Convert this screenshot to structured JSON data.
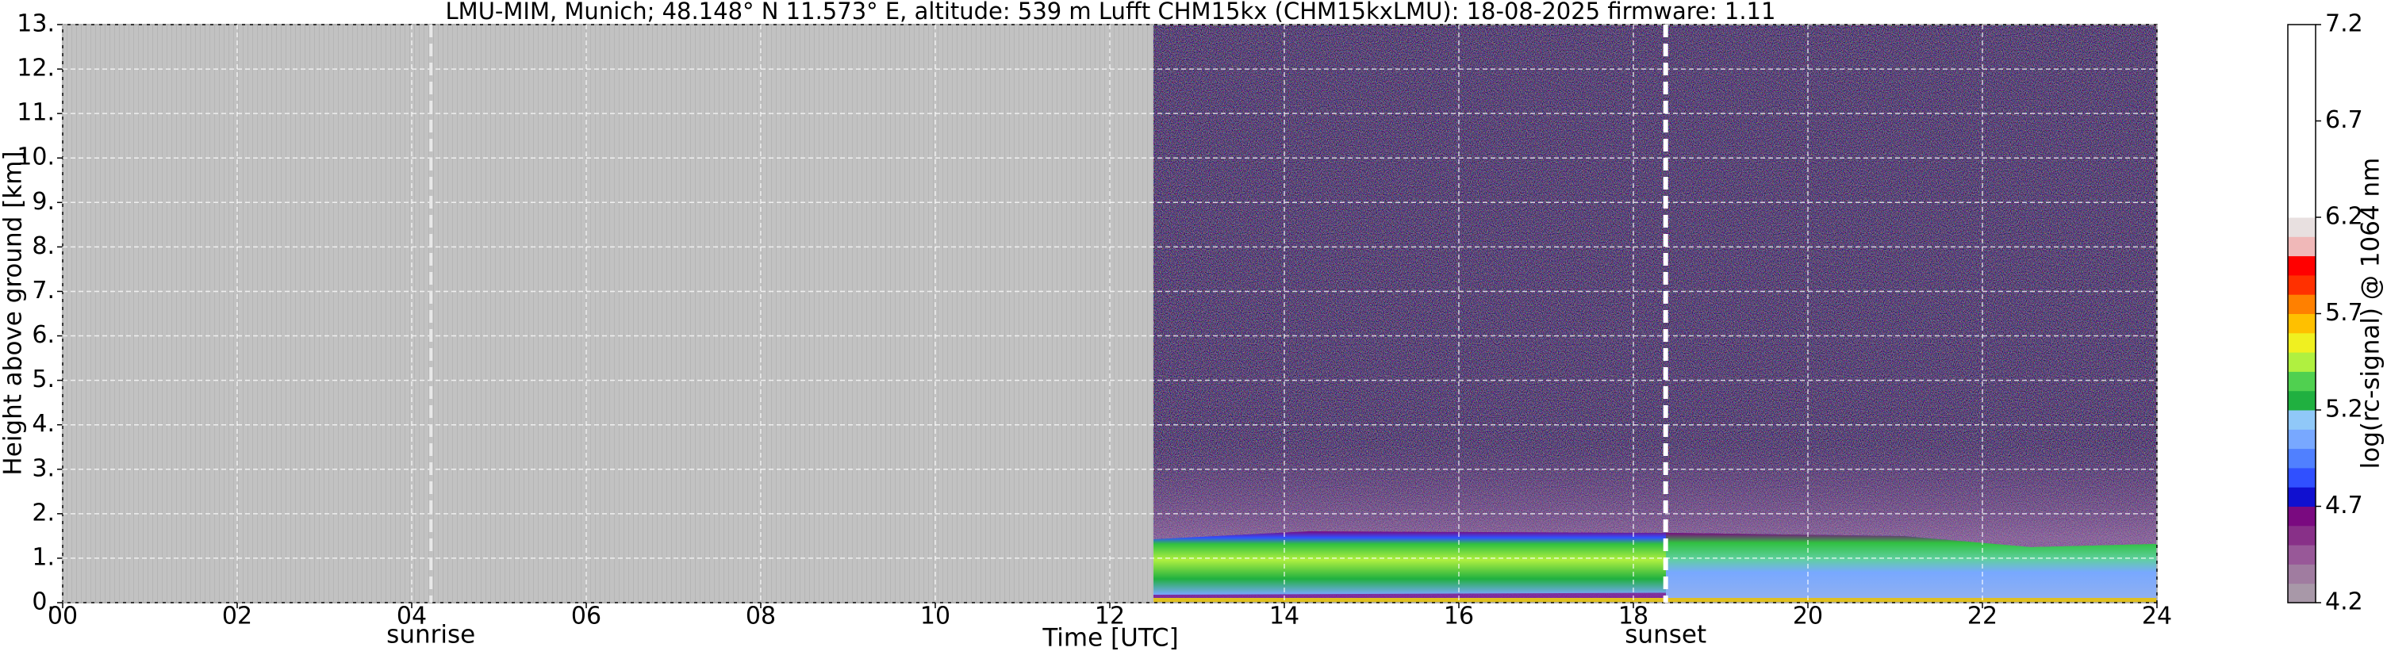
{
  "chart_data": {
    "type": "heatmap",
    "title": "LMU-MIM, Munich; 48.148° N 11.573° E, altitude: 539 m    Lufft CHM15kx (CHM15kxLMU): 18-08-2025    firmware: 1.11",
    "xlabel": "Time [UTC]",
    "ylabel": "Height above ground [km]",
    "xlim": [
      0,
      24
    ],
    "xticks": [
      {
        "value": 0,
        "label": "00"
      },
      {
        "value": 2,
        "label": "02"
      },
      {
        "value": 4,
        "label": "04"
      },
      {
        "value": 6,
        "label": "06"
      },
      {
        "value": 8,
        "label": "08"
      },
      10,
      12,
      14,
      16,
      18,
      20,
      22,
      24
    ],
    "ylim": [
      0,
      13
    ],
    "yticks": [
      {
        "value": 0,
        "label": "0."
      },
      {
        "value": 1,
        "label": "1."
      },
      {
        "value": 2,
        "label": "2."
      },
      {
        "value": 3,
        "label": "3."
      },
      {
        "value": 4,
        "label": "4."
      },
      {
        "value": 5,
        "label": "5."
      },
      {
        "value": 6,
        "label": "6."
      },
      {
        "value": 7,
        "label": "7."
      },
      {
        "value": 8,
        "label": "8."
      },
      {
        "value": 9,
        "label": "9."
      },
      {
        "value": 10,
        "label": "10."
      },
      {
        "value": 11,
        "label": "11."
      },
      {
        "value": 12,
        "label": "12."
      },
      {
        "value": 13,
        "label": "13."
      }
    ],
    "grid": true,
    "annotations": [
      {
        "text": "sunrise",
        "x": 4.22
      },
      {
        "text": "sunset",
        "x": 18.37
      }
    ],
    "colorbar": {
      "label": "log(rc-signal) @ 1064 nm",
      "lim": [
        4.2,
        7.2
      ],
      "ticks": [
        4.2,
        4.7,
        5.2,
        5.7,
        6.2,
        6.7,
        7.2
      ],
      "colors": [
        "#a898a8",
        "#a07ca0",
        "#985898",
        "#883088",
        "#7a0a80",
        "#1010d0",
        "#3050ff",
        "#5080ff",
        "#78a8ff",
        "#90c8f8",
        "#20b040",
        "#50d050",
        "#b0f040",
        "#f0f020",
        "#ffc000",
        "#ff8000",
        "#ff3000",
        "#ff0000",
        "#f0b8b8",
        "#e8e0e0",
        "#ffffff",
        "#ffffff",
        "#ffffff",
        "#ffffff",
        "#ffffff",
        "#ffffff",
        "#ffffff",
        "#ffffff",
        "#ffffff",
        "#ffffff"
      ]
    }
  }
}
